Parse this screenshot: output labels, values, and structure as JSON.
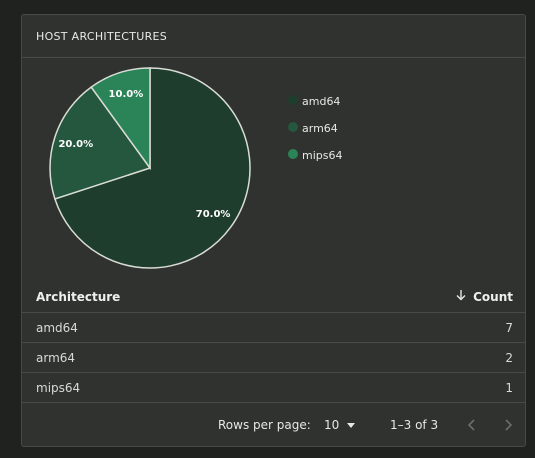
{
  "card": {
    "title": "HOST ARCHITECTURES"
  },
  "chart_data": {
    "type": "pie",
    "categories": [
      "amd64",
      "arm64",
      "mips64"
    ],
    "values": [
      70.0,
      20.0,
      10.0
    ],
    "labels": [
      "70.0%",
      "20.0%",
      "10.0%"
    ],
    "colors": [
      "#1e3d2d",
      "#24573d",
      "#2b8457"
    ],
    "legend": "right"
  },
  "legend": {
    "items": [
      {
        "label": "amd64",
        "color": "#1e3d2d"
      },
      {
        "label": "arm64",
        "color": "#24573d"
      },
      {
        "label": "mips64",
        "color": "#2b8457"
      }
    ]
  },
  "table": {
    "headers": {
      "architecture": "Architecture",
      "count": "Count"
    },
    "rows": [
      {
        "architecture": "amd64",
        "count": "7"
      },
      {
        "architecture": "arm64",
        "count": "2"
      },
      {
        "architecture": "mips64",
        "count": "1"
      }
    ]
  },
  "pagination": {
    "rows_per_page_label": "Rows per page:",
    "rows_per_page_value": "10",
    "range_text": "1–3 of 3"
  },
  "colors": {
    "background": "#1f221f",
    "card": "#2f322e",
    "border": "#474b45",
    "slice_stroke": "#d9dcd6"
  }
}
